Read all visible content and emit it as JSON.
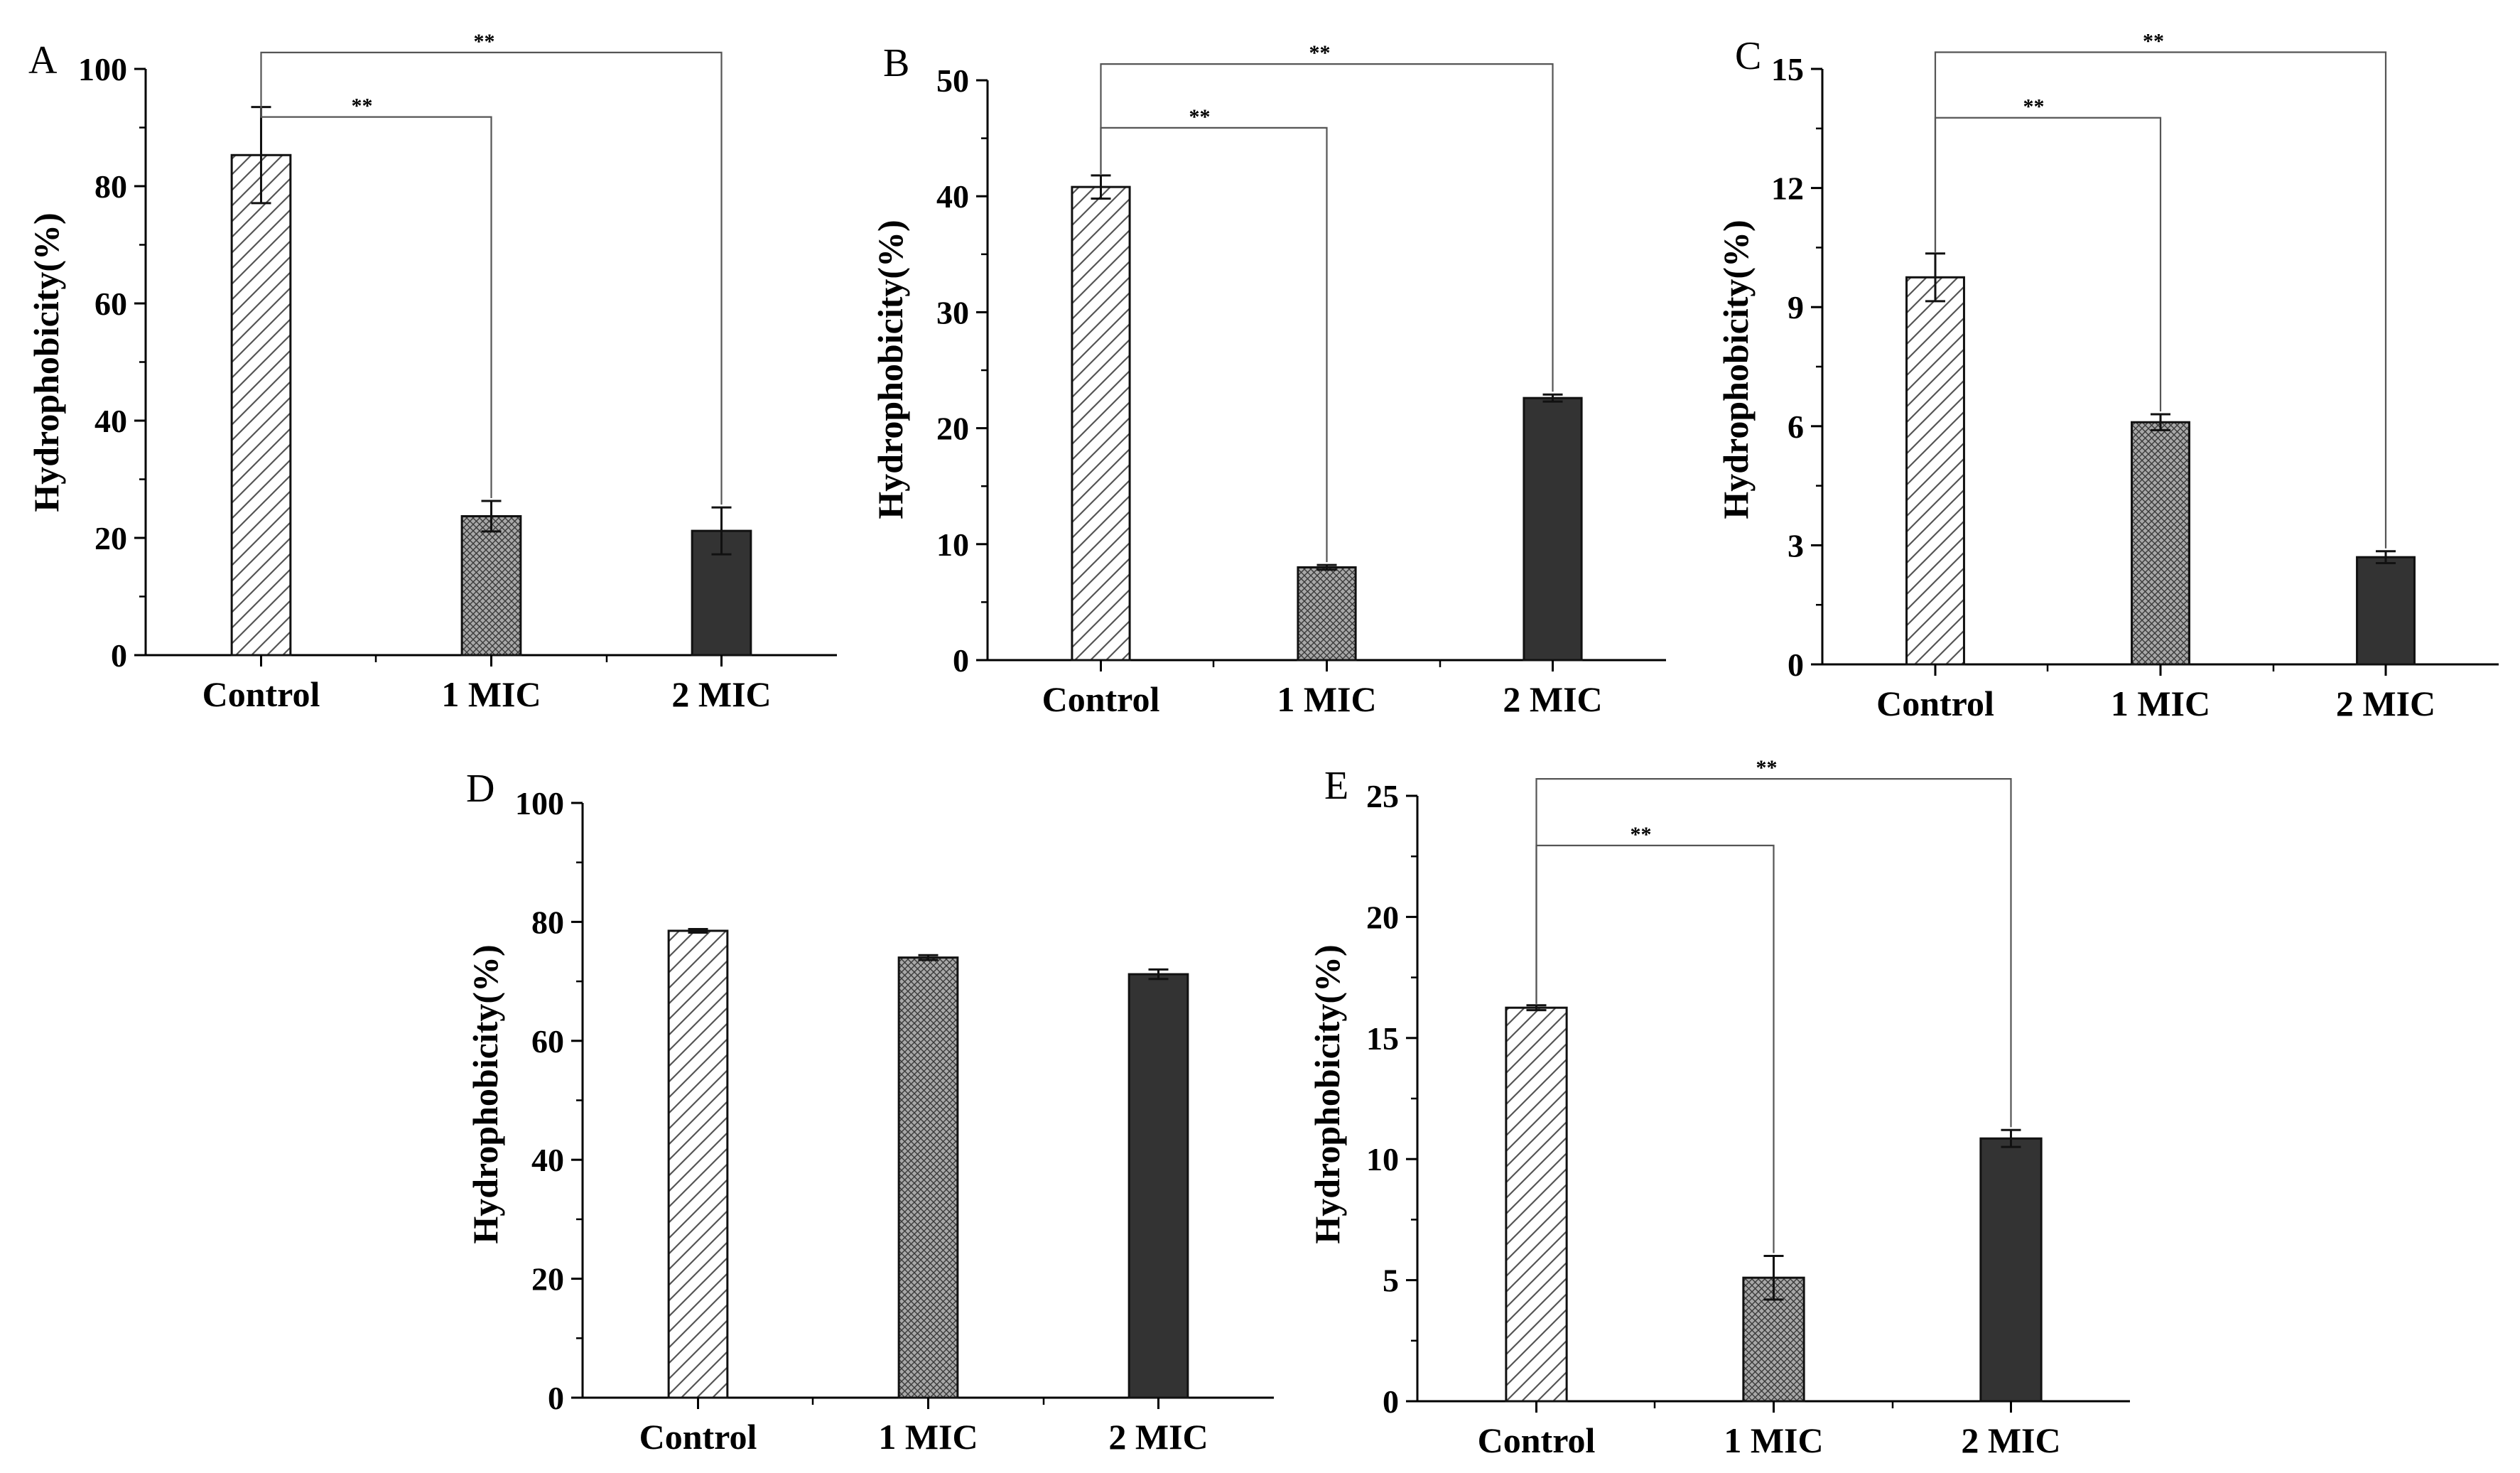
{
  "figure": {
    "colors": {
      "axis": "#000000",
      "control_hatch": "#555555",
      "mic1_fill": "#9a9a9a",
      "mic2_fill": "#333333",
      "bracket": "#555555"
    },
    "charts": [
      {
        "letter": "A",
        "ylabel": "Hydrophobicity(%)",
        "ylim": [
          0,
          100
        ],
        "yticks": [
          "0",
          "20",
          "40",
          "60",
          "80",
          "100"
        ],
        "categories": [
          "Control",
          "1 MIC",
          "2 MIC"
        ],
        "brackets": [
          {
            "to": 1,
            "label": "**"
          },
          {
            "to": 2,
            "label": "**"
          }
        ]
      },
      {
        "letter": "B",
        "ylabel": "Hydrophobicity(%)",
        "ylim": [
          0,
          50
        ],
        "yticks": [
          "0",
          "10",
          "20",
          "30",
          "40",
          "50"
        ],
        "categories": [
          "Control",
          "1 MIC",
          "2 MIC"
        ],
        "brackets": [
          {
            "to": 1,
            "label": "**"
          },
          {
            "to": 2,
            "label": "**"
          }
        ]
      },
      {
        "letter": "C",
        "ylabel": "Hydrophobicity(%)",
        "ylim": [
          0,
          15
        ],
        "yticks": [
          "0",
          "3",
          "6",
          "9",
          "12",
          "15"
        ],
        "categories": [
          "Control",
          "1 MIC",
          "2 MIC"
        ],
        "brackets": [
          {
            "to": 1,
            "label": "**"
          },
          {
            "to": 2,
            "label": "**"
          }
        ]
      },
      {
        "letter": "D",
        "ylabel": "Hydrophobicity(%)",
        "ylim": [
          0,
          100
        ],
        "yticks": [
          "0",
          "20",
          "40",
          "60",
          "80",
          "100"
        ],
        "categories": [
          "Control",
          "1 MIC",
          "2 MIC"
        ],
        "brackets": []
      },
      {
        "letter": "E",
        "ylabel": "Hydrophobicity(%)",
        "ylim": [
          0,
          25
        ],
        "yticks": [
          "0",
          "5",
          "10",
          "15",
          "20",
          "25"
        ],
        "categories": [
          "Control",
          "1 MIC",
          "2 MIC"
        ],
        "brackets": [
          {
            "to": 1,
            "label": "**"
          },
          {
            "to": 2,
            "label": "**"
          }
        ]
      }
    ]
  },
  "chart_data": [
    {
      "type": "bar",
      "title": "A",
      "xlabel": "",
      "ylabel": "Hydrophobicity(%)",
      "ylim": [
        0,
        100
      ],
      "categories": [
        "Control",
        "1 MIC",
        "2 MIC"
      ],
      "values": [
        85.3,
        23.7,
        21.2
      ],
      "errors": [
        8.2,
        2.6,
        4.0
      ],
      "significance": [
        "Control vs 1 MIC: **",
        "Control vs 2 MIC: **"
      ]
    },
    {
      "type": "bar",
      "title": "B",
      "xlabel": "",
      "ylabel": "Hydrophobicity(%)",
      "ylim": [
        0,
        50
      ],
      "categories": [
        "Control",
        "1 MIC",
        "2 MIC"
      ],
      "values": [
        40.8,
        8.0,
        22.6
      ],
      "errors": [
        1.0,
        0.2,
        0.3
      ],
      "significance": [
        "Control vs 1 MIC: **",
        "Control vs 2 MIC: **"
      ]
    },
    {
      "type": "bar",
      "title": "C",
      "xlabel": "",
      "ylabel": "Hydrophobicity(%)",
      "ylim": [
        0,
        15
      ],
      "categories": [
        "Control",
        "1 MIC",
        "2 MIC"
      ],
      "values": [
        9.75,
        6.1,
        2.7
      ],
      "errors": [
        0.6,
        0.2,
        0.15
      ],
      "significance": [
        "Control vs 1 MIC: **",
        "Control vs 2 MIC: **"
      ]
    },
    {
      "type": "bar",
      "title": "D",
      "xlabel": "",
      "ylabel": "Hydrophobicity(%)",
      "ylim": [
        0,
        100
      ],
      "categories": [
        "Control",
        "1 MIC",
        "2 MIC"
      ],
      "values": [
        78.5,
        74.0,
        71.2
      ],
      "errors": [
        0.3,
        0.4,
        0.8
      ],
      "significance": []
    },
    {
      "type": "bar",
      "title": "E",
      "xlabel": "",
      "ylabel": "Hydrophobicity(%)",
      "ylim": [
        0,
        25
      ],
      "categories": [
        "Control",
        "1 MIC",
        "2 MIC"
      ],
      "values": [
        16.25,
        5.1,
        10.85
      ],
      "errors": [
        0.1,
        0.9,
        0.35
      ],
      "significance": [
        "Control vs 1 MIC: **",
        "Control vs 2 MIC: **"
      ]
    }
  ]
}
